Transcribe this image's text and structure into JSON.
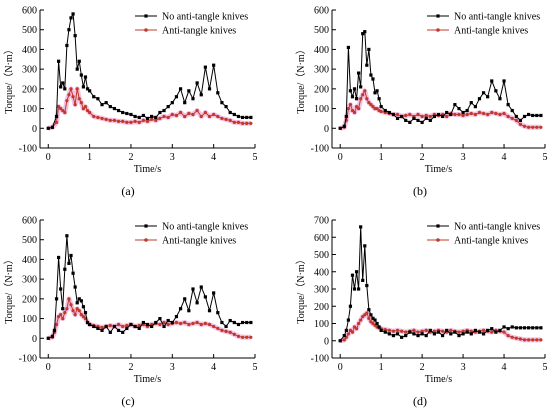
{
  "colors": {
    "series_1": "#000000",
    "series_2": "#c0392b",
    "series_2_glow": "#f0a6d6",
    "axis": "#000000"
  },
  "chart_data": [
    {
      "panel_label": "(a)",
      "type": "line",
      "xlabel": "Time/s",
      "ylabel": "Torque/（N·m）",
      "xlim": [
        -0.2,
        5
      ],
      "ylim": [
        -100,
        600
      ],
      "xticks": [
        0,
        1,
        2,
        3,
        4,
        5
      ],
      "yticks": [
        -100,
        0,
        100,
        200,
        300,
        400,
        500,
        600
      ],
      "legend_position": "top-right",
      "series": [
        {
          "name": "No anti-tangle knives",
          "marker": "square",
          "x": [
            0,
            0.1,
            0.2,
            0.25,
            0.3,
            0.35,
            0.4,
            0.45,
            0.5,
            0.55,
            0.6,
            0.65,
            0.7,
            0.75,
            0.8,
            0.85,
            0.9,
            0.95,
            1.0,
            1.1,
            1.2,
            1.3,
            1.4,
            1.5,
            1.6,
            1.7,
            1.8,
            1.9,
            2.0,
            2.1,
            2.2,
            2.3,
            2.4,
            2.5,
            2.6,
            2.7,
            2.8,
            2.9,
            3.0,
            3.1,
            3.2,
            3.3,
            3.4,
            3.5,
            3.6,
            3.7,
            3.8,
            3.9,
            4.0,
            4.1,
            4.2,
            4.3,
            4.4,
            4.5,
            4.6,
            4.7,
            4.8,
            4.9
          ],
          "y": [
            0,
            5,
            60,
            340,
            210,
            230,
            200,
            420,
            500,
            560,
            580,
            470,
            300,
            340,
            270,
            210,
            260,
            200,
            190,
            160,
            150,
            120,
            130,
            110,
            100,
            90,
            80,
            75,
            70,
            60,
            55,
            65,
            50,
            60,
            55,
            80,
            90,
            110,
            130,
            160,
            200,
            130,
            190,
            150,
            230,
            170,
            310,
            200,
            320,
            180,
            130,
            110,
            80,
            70,
            60,
            55,
            55,
            55
          ]
        },
        {
          "name": "Anti-tangle knives",
          "marker": "circle",
          "x": [
            0,
            0.1,
            0.2,
            0.25,
            0.3,
            0.35,
            0.4,
            0.45,
            0.5,
            0.55,
            0.6,
            0.65,
            0.7,
            0.75,
            0.8,
            0.85,
            0.9,
            0.95,
            1.0,
            1.1,
            1.2,
            1.3,
            1.4,
            1.5,
            1.6,
            1.7,
            1.8,
            1.9,
            2.0,
            2.1,
            2.2,
            2.3,
            2.4,
            2.5,
            2.6,
            2.7,
            2.8,
            2.9,
            3.0,
            3.1,
            3.2,
            3.3,
            3.4,
            3.5,
            3.6,
            3.7,
            3.8,
            3.9,
            4.0,
            4.1,
            4.2,
            4.3,
            4.4,
            4.5,
            4.6,
            4.7,
            4.8,
            4.9
          ],
          "y": [
            0,
            5,
            30,
            110,
            100,
            90,
            80,
            140,
            170,
            200,
            160,
            120,
            200,
            150,
            130,
            100,
            110,
            90,
            80,
            60,
            55,
            50,
            45,
            40,
            40,
            35,
            35,
            30,
            30,
            35,
            30,
            40,
            35,
            45,
            40,
            50,
            60,
            55,
            70,
            65,
            80,
            60,
            75,
            70,
            90,
            60,
            80,
            60,
            70,
            60,
            50,
            45,
            40,
            30,
            30,
            25,
            25,
            25
          ]
        }
      ]
    },
    {
      "panel_label": "(b)",
      "type": "line",
      "xlabel": "Time/s",
      "ylabel": "Torque/（N·m）",
      "xlim": [
        -0.2,
        5
      ],
      "ylim": [
        -100,
        600
      ],
      "xticks": [
        0,
        1,
        2,
        3,
        4,
        5
      ],
      "yticks": [
        -100,
        0,
        100,
        200,
        300,
        400,
        500,
        600
      ],
      "legend_position": "top-right",
      "series": [
        {
          "name": "No anti-tangle knives",
          "marker": "square",
          "x": [
            0,
            0.1,
            0.15,
            0.2,
            0.25,
            0.3,
            0.35,
            0.4,
            0.45,
            0.5,
            0.55,
            0.6,
            0.65,
            0.7,
            0.75,
            0.8,
            0.85,
            0.9,
            0.95,
            1.0,
            1.1,
            1.2,
            1.3,
            1.4,
            1.5,
            1.6,
            1.7,
            1.8,
            1.9,
            2.0,
            2.1,
            2.2,
            2.3,
            2.4,
            2.5,
            2.6,
            2.7,
            2.8,
            2.9,
            3.0,
            3.1,
            3.2,
            3.3,
            3.4,
            3.5,
            3.6,
            3.7,
            3.8,
            3.9,
            4.0,
            4.1,
            4.2,
            4.3,
            4.4,
            4.5,
            4.6,
            4.7,
            4.8,
            4.9
          ],
          "y": [
            0,
            10,
            60,
            410,
            190,
            160,
            200,
            150,
            280,
            210,
            480,
            490,
            320,
            400,
            270,
            250,
            180,
            190,
            150,
            110,
            90,
            80,
            70,
            50,
            60,
            40,
            30,
            50,
            40,
            30,
            50,
            40,
            60,
            70,
            60,
            80,
            70,
            120,
            100,
            80,
            90,
            130,
            110,
            150,
            180,
            160,
            240,
            190,
            150,
            240,
            120,
            90,
            60,
            40,
            60,
            70,
            65,
            65,
            65
          ]
        },
        {
          "name": "Anti-tangle knives",
          "marker": "circle",
          "x": [
            0,
            0.1,
            0.15,
            0.2,
            0.25,
            0.3,
            0.35,
            0.4,
            0.45,
            0.5,
            0.55,
            0.6,
            0.65,
            0.7,
            0.75,
            0.8,
            0.85,
            0.9,
            0.95,
            1.0,
            1.1,
            1.2,
            1.3,
            1.4,
            1.5,
            1.6,
            1.7,
            1.8,
            1.9,
            2.0,
            2.1,
            2.2,
            2.3,
            2.4,
            2.5,
            2.6,
            2.7,
            2.8,
            2.9,
            3.0,
            3.1,
            3.2,
            3.3,
            3.4,
            3.5,
            3.6,
            3.7,
            3.8,
            3.9,
            4.0,
            4.1,
            4.2,
            4.3,
            4.4,
            4.5,
            4.6,
            4.7,
            4.8,
            4.9
          ],
          "y": [
            0,
            5,
            40,
            100,
            120,
            90,
            80,
            110,
            100,
            150,
            170,
            190,
            150,
            130,
            120,
            110,
            100,
            100,
            90,
            85,
            80,
            75,
            70,
            70,
            60,
            65,
            70,
            60,
            70,
            60,
            65,
            60,
            70,
            65,
            70,
            60,
            75,
            70,
            70,
            65,
            70,
            75,
            70,
            80,
            75,
            70,
            80,
            75,
            70,
            75,
            60,
            50,
            40,
            20,
            10,
            5,
            5,
            5,
            5
          ]
        }
      ]
    },
    {
      "panel_label": "(c)",
      "type": "line",
      "xlabel": "Time/s",
      "ylabel": "Torque/（N·m）",
      "xlim": [
        -0.2,
        5
      ],
      "ylim": [
        -100,
        600
      ],
      "xticks": [
        0,
        1,
        2,
        3,
        4,
        5
      ],
      "yticks": [
        -100,
        0,
        100,
        200,
        300,
        400,
        500,
        600
      ],
      "legend_position": "top-right",
      "series": [
        {
          "name": "No anti-tangle knives",
          "marker": "square",
          "x": [
            0,
            0.1,
            0.15,
            0.2,
            0.25,
            0.3,
            0.35,
            0.4,
            0.45,
            0.5,
            0.55,
            0.6,
            0.65,
            0.7,
            0.75,
            0.8,
            0.85,
            0.9,
            0.95,
            1.0,
            1.1,
            1.2,
            1.3,
            1.4,
            1.5,
            1.6,
            1.7,
            1.8,
            1.9,
            2.0,
            2.1,
            2.2,
            2.3,
            2.4,
            2.5,
            2.6,
            2.7,
            2.8,
            2.9,
            3.0,
            3.1,
            3.2,
            3.3,
            3.4,
            3.5,
            3.6,
            3.7,
            3.8,
            3.9,
            4.0,
            4.1,
            4.2,
            4.3,
            4.4,
            4.5,
            4.6,
            4.7,
            4.8,
            4.9
          ],
          "y": [
            0,
            10,
            40,
            200,
            410,
            250,
            150,
            350,
            520,
            380,
            420,
            330,
            260,
            180,
            200,
            190,
            160,
            130,
            80,
            70,
            60,
            50,
            40,
            60,
            30,
            60,
            40,
            30,
            50,
            70,
            60,
            50,
            80,
            70,
            60,
            80,
            100,
            60,
            90,
            80,
            110,
            150,
            200,
            140,
            250,
            180,
            260,
            210,
            140,
            230,
            130,
            80,
            60,
            90,
            80,
            70,
            80,
            80,
            80
          ]
        },
        {
          "name": "Anti-tangle knives",
          "marker": "circle",
          "x": [
            0,
            0.1,
            0.15,
            0.2,
            0.25,
            0.3,
            0.35,
            0.4,
            0.45,
            0.5,
            0.55,
            0.6,
            0.65,
            0.7,
            0.75,
            0.8,
            0.85,
            0.9,
            0.95,
            1.0,
            1.1,
            1.2,
            1.3,
            1.4,
            1.5,
            1.6,
            1.7,
            1.8,
            1.9,
            2.0,
            2.1,
            2.2,
            2.3,
            2.4,
            2.5,
            2.6,
            2.7,
            2.8,
            2.9,
            3.0,
            3.1,
            3.2,
            3.3,
            3.4,
            3.5,
            3.6,
            3.7,
            3.8,
            3.9,
            4.0,
            4.1,
            4.2,
            4.3,
            4.4,
            4.5,
            4.6,
            4.7,
            4.8,
            4.9
          ],
          "y": [
            0,
            5,
            30,
            70,
            110,
            120,
            100,
            130,
            150,
            200,
            170,
            140,
            120,
            150,
            140,
            120,
            110,
            100,
            80,
            70,
            65,
            60,
            55,
            60,
            65,
            60,
            70,
            60,
            65,
            70,
            60,
            65,
            70,
            60,
            70,
            75,
            70,
            80,
            70,
            75,
            80,
            75,
            80,
            70,
            75,
            80,
            70,
            75,
            70,
            60,
            50,
            40,
            35,
            30,
            20,
            10,
            5,
            5,
            5
          ]
        }
      ]
    },
    {
      "panel_label": "(d)",
      "type": "line",
      "xlabel": "Time/s",
      "ylabel": "Torque/（N·m）",
      "xlim": [
        -0.2,
        5
      ],
      "ylim": [
        -100,
        700
      ],
      "xticks": [
        0,
        1,
        2,
        3,
        4,
        5
      ],
      "yticks": [
        -100,
        0,
        100,
        200,
        300,
        400,
        500,
        600,
        700
      ],
      "legend_position": "top-right",
      "series": [
        {
          "name": "No anti-tangle knives",
          "marker": "square",
          "x": [
            0,
            0.1,
            0.15,
            0.2,
            0.25,
            0.3,
            0.35,
            0.4,
            0.45,
            0.5,
            0.55,
            0.6,
            0.65,
            0.7,
            0.75,
            0.8,
            0.85,
            0.9,
            0.95,
            1.0,
            1.1,
            1.2,
            1.3,
            1.4,
            1.5,
            1.6,
            1.7,
            1.8,
            1.9,
            2.0,
            2.1,
            2.2,
            2.3,
            2.4,
            2.5,
            2.6,
            2.7,
            2.8,
            2.9,
            3.0,
            3.1,
            3.2,
            3.3,
            3.4,
            3.5,
            3.6,
            3.7,
            3.8,
            3.9,
            4.0,
            4.1,
            4.2,
            4.3,
            4.4,
            4.5,
            4.6,
            4.7,
            4.8,
            4.9
          ],
          "y": [
            0,
            30,
            60,
            120,
            200,
            380,
            300,
            400,
            300,
            660,
            350,
            550,
            320,
            180,
            150,
            130,
            120,
            100,
            80,
            60,
            50,
            40,
            30,
            40,
            20,
            30,
            50,
            40,
            30,
            40,
            30,
            60,
            40,
            50,
            30,
            60,
            40,
            50,
            30,
            40,
            50,
            40,
            60,
            50,
            40,
            60,
            70,
            50,
            60,
            80,
            70,
            80,
            75,
            75,
            75,
            75,
            75,
            75,
            75
          ]
        },
        {
          "name": "Anti-tangle knives",
          "marker": "circle",
          "x": [
            0,
            0.1,
            0.15,
            0.2,
            0.25,
            0.3,
            0.35,
            0.4,
            0.45,
            0.5,
            0.55,
            0.6,
            0.65,
            0.7,
            0.75,
            0.8,
            0.85,
            0.9,
            0.95,
            1.0,
            1.1,
            1.2,
            1.3,
            1.4,
            1.5,
            1.6,
            1.7,
            1.8,
            1.9,
            2.0,
            2.1,
            2.2,
            2.3,
            2.4,
            2.5,
            2.6,
            2.7,
            2.8,
            2.9,
            3.0,
            3.1,
            3.2,
            3.3,
            3.4,
            3.5,
            3.6,
            3.7,
            3.8,
            3.9,
            4.0,
            4.1,
            4.2,
            4.3,
            4.4,
            4.5,
            4.6,
            4.7,
            4.8,
            4.9
          ],
          "y": [
            0,
            5,
            20,
            40,
            60,
            50,
            80,
            70,
            100,
            120,
            140,
            150,
            160,
            130,
            110,
            100,
            90,
            80,
            75,
            70,
            65,
            60,
            55,
            60,
            55,
            50,
            55,
            60,
            50,
            55,
            60,
            50,
            55,
            60,
            55,
            50,
            60,
            55,
            50,
            55,
            60,
            55,
            50,
            55,
            60,
            55,
            50,
            60,
            55,
            50,
            30,
            20,
            15,
            10,
            5,
            5,
            5,
            5,
            5
          ]
        }
      ]
    }
  ]
}
